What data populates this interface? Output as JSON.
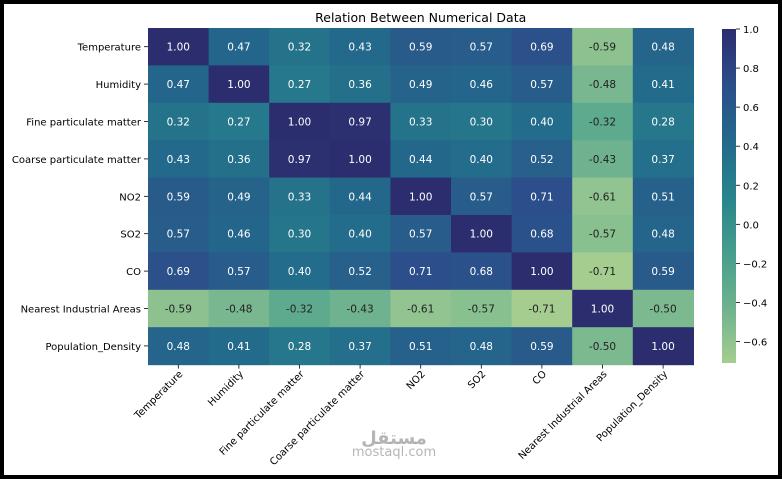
{
  "chart_data": {
    "type": "heatmap",
    "title": "Relation Between Numerical Data",
    "variables": [
      "Temperature",
      "Humidity",
      "Fine particulate matter",
      "Coarse particulate matter",
      "NO2",
      "SO2",
      "CO",
      "Nearest Industrial Areas",
      "Population_Density"
    ],
    "matrix": [
      [
        1.0,
        0.47,
        0.32,
        0.43,
        0.59,
        0.57,
        0.69,
        -0.59,
        0.48
      ],
      [
        0.47,
        1.0,
        0.27,
        0.36,
        0.49,
        0.46,
        0.57,
        -0.48,
        0.41
      ],
      [
        0.32,
        0.27,
        1.0,
        0.97,
        0.33,
        0.3,
        0.4,
        -0.32,
        0.28
      ],
      [
        0.43,
        0.36,
        0.97,
        1.0,
        0.44,
        0.4,
        0.52,
        -0.43,
        0.37
      ],
      [
        0.59,
        0.49,
        0.33,
        0.44,
        1.0,
        0.57,
        0.71,
        -0.61,
        0.51
      ],
      [
        0.57,
        0.46,
        0.3,
        0.4,
        0.57,
        1.0,
        0.68,
        -0.57,
        0.48
      ],
      [
        0.69,
        0.57,
        0.4,
        0.52,
        0.71,
        0.68,
        1.0,
        -0.71,
        0.59
      ],
      [
        -0.59,
        -0.48,
        -0.32,
        -0.43,
        -0.61,
        -0.57,
        -0.71,
        1.0,
        -0.5
      ],
      [
        0.48,
        0.41,
        0.28,
        0.37,
        0.51,
        0.48,
        0.59,
        -0.5,
        1.0
      ]
    ],
    "colormap": "crest_r",
    "colorbar": {
      "range": [
        -0.71,
        1.0
      ],
      "ticks": [
        1.0,
        0.8,
        0.6,
        0.4,
        0.2,
        0.0,
        -0.2,
        -0.4,
        -0.6
      ],
      "tick_labels": [
        "1.0",
        "0.8",
        "0.6",
        "0.4",
        "0.2",
        "0.0",
        "−0.2",
        "−0.4",
        "−0.6"
      ]
    },
    "annotation_format": "0.00"
  },
  "colors": {
    "stops": [
      "#a5cd90",
      "#6db28f",
      "#459d8c",
      "#28848c",
      "#23698b",
      "#2c4e8a",
      "#2c2d6e"
    ]
  },
  "watermark": {
    "text_ar": "مستقل",
    "site": "mostaql.com"
  }
}
